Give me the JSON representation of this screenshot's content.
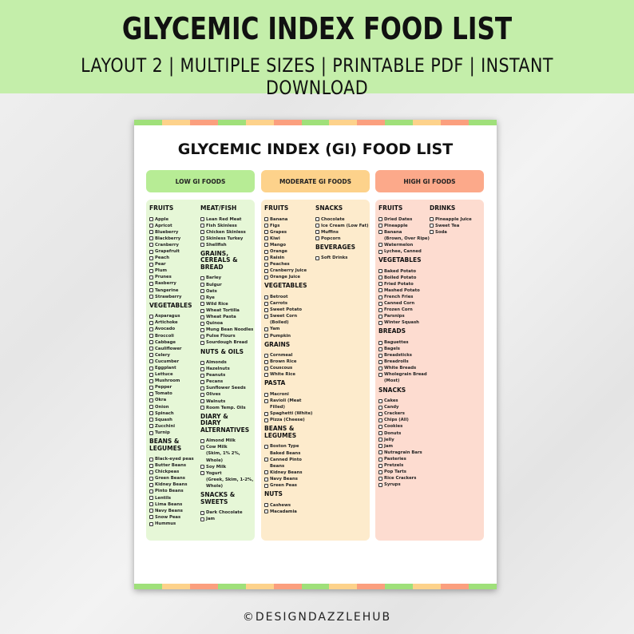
{
  "banner": {
    "title": "GLYCEMIC INDEX FOOD LIST",
    "subtitle": "LAYOUT 2 | MULTIPLE SIZES | PRINTABLE PDF | INSTANT DOWNLOAD"
  },
  "sheet": {
    "title": "GLYCEMIC INDEX (GI) FOOD LIST"
  },
  "colors": {
    "banner": "#c4eeaa",
    "low": "#b7ec95",
    "low_bg": "#e6f7d7",
    "moderate": "#fdd28b",
    "moderate_bg": "#fdebcc",
    "high": "#fca98a",
    "high_bg": "#fddcd0"
  },
  "columns": [
    {
      "label": "LOW GI FOODS",
      "subcolumns": [
        [
          {
            "title": "FRUITS",
            "items": [
              "Apple",
              "Apricot",
              "Blueberry",
              "Blackberry",
              "Cranberry",
              "Grapefruit",
              "Peach",
              "Pear",
              "Plum",
              "Prunes",
              "Rasberry",
              "Tangerine",
              "Strawberry"
            ]
          },
          {
            "title": "VEGETABLES",
            "items": [
              "Asparagus",
              "Artichoke",
              "Avocado",
              "Broccoli",
              "Cabbage",
              "Cauliflower",
              "Celery",
              "Cucumber",
              "Eggplant",
              "Lettuce",
              "Mushroom",
              "Pepper",
              "Tomato",
              "Okra",
              "Onion",
              "Spinach",
              "Squash",
              "Zucchini",
              "Turnip"
            ]
          },
          {
            "title": "BEANS & LEGUMES",
            "items": [
              "Black-eyed peas",
              "Butter Beans",
              "Chickpeas",
              "Green Beans",
              "Kidney Beans",
              "Pinto Beans",
              "Lentils",
              "Lima Beans",
              "Navy Beans",
              "Snow Peas",
              "Hummus"
            ]
          }
        ],
        [
          {
            "title": "MEAT/FISH",
            "items": [
              "Lean Red Meat",
              "Fish Skinless",
              "Chicken Skinless",
              "Skinless Turkey",
              "Shellfish"
            ]
          },
          {
            "title": "GRAINS, CEREALS & BREAD",
            "items": [
              "Barley",
              "Bulgur",
              "Oats",
              "Rye",
              "Wild Rice",
              "Wheat Tortilla",
              "Wheat Pasta",
              "Quinoa",
              "Mung Bean Noodles",
              "Pulse Flours",
              "Sourdough Bread"
            ]
          },
          {
            "title": "NUTS & OILS",
            "items": [
              "Almonds",
              "Hazelnuts",
              "Peanuts",
              "Pecans",
              "Sunflower Seeds",
              "Olives",
              "Walnuts",
              "Room Temp. Oils"
            ]
          },
          {
            "title": "DIARY & DIARY ALTERNATIVES",
            "items": [
              "Almond Milk",
              "Cow Milk\n(Skim, 1% 2%, Whole)",
              "Soy Milk",
              "Yogurt\n(Greek, Skim, 1-2%, Whole)"
            ]
          },
          {
            "title": "SNACKS & SWEETS",
            "items": [
              "Dark Chocolate",
              "Jam"
            ]
          }
        ]
      ]
    },
    {
      "label": "MODERATE GI FOODS",
      "subcolumns": [
        [
          {
            "title": "FRUITS",
            "items": [
              "Banana",
              "Figs",
              "Grapes",
              "Kiwi",
              "Mango",
              "Orange",
              "Raisin",
              "Peaches",
              "Cranberry Juice",
              "Orange Juice"
            ]
          },
          {
            "title": "VEGETABLES",
            "items": [
              "Betroot",
              "Carrots",
              "Sweet Potato",
              "Sweet Corn (Boiled)",
              "Yam",
              "Pumpkin"
            ]
          },
          {
            "title": "GRAINS",
            "items": [
              "Cornmeal",
              "Brown Rice",
              "Couscous",
              "White Rice"
            ]
          },
          {
            "title": "PASTA",
            "items": [
              "Macroni",
              "Ravioli (Meat Filled)",
              "Spaghetti (White)",
              "Pizza (Cheese)"
            ]
          },
          {
            "title": "BEANS & LEGUMES",
            "items": [
              "Boston Type\nBaked Beans",
              "Canned Pinto Beans",
              "Kidney Beans",
              "Navy Beans",
              "Green Peas"
            ]
          },
          {
            "title": "NUTS",
            "items": [
              "Cashews",
              "Macadamia"
            ]
          }
        ],
        [
          {
            "title": "SNACKS",
            "items": [
              "Chocolate",
              "Ice Cream (Low Fat)",
              "Muffins",
              "Popcorn"
            ]
          },
          {
            "title": "BEVERAGES",
            "items": [
              "Soft Drinks"
            ]
          }
        ]
      ]
    },
    {
      "label": "HIGH GI FOODS",
      "subcolumns": [
        [
          {
            "title": "FRUITS",
            "items": [
              "Dried Dates",
              "Pineapple",
              "Banana\n(Brown, Over Ripe)",
              "Watermelon",
              "Lychee, Canned"
            ]
          },
          {
            "title": "VEGETABLES",
            "items": [
              "Baked Potato",
              "Boiled Potato",
              "Fried Potato",
              "Mashed Potato",
              "French Fries",
              "Canned Corn",
              "Frozen Corn",
              "Parsnips",
              "Winter Squash"
            ]
          },
          {
            "title": "BREADS",
            "items": [
              "Baguettes",
              "Bagels",
              "Breadsticks",
              "Breadrolls",
              "White Breads",
              "Wholegrain Bread (Most)"
            ]
          },
          {
            "title": "SNACKS",
            "items": [
              "Cakes",
              "Candy",
              "Crackers",
              "Chips (All)",
              "Cookies",
              "Donuts",
              "Jelly",
              "Jam",
              "Nutragrain Bars",
              "Pasteries",
              "Pretzels",
              "Pop Tarts",
              "Rice Crackers",
              "Syrups"
            ]
          }
        ],
        [
          {
            "title": "DRINKS",
            "items": [
              "Pineapple Juice",
              "Sweet Tea",
              "Soda"
            ]
          }
        ]
      ]
    }
  ],
  "footer": {
    "text": "©DESIGNDAZZLEHUB"
  }
}
